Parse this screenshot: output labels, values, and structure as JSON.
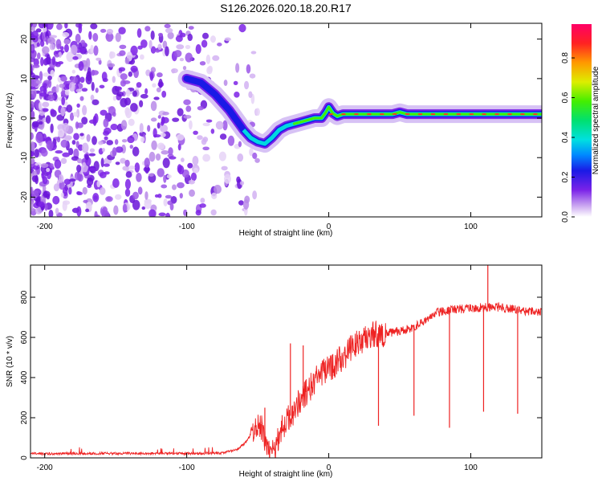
{
  "title": "S126.2026.020.18.20.R17",
  "chart_data": [
    {
      "type": "heatmap",
      "xlabel": "Height of straight line (km)",
      "ylabel": "Frequency (Hz)",
      "xlim": [
        -210,
        150
      ],
      "ylim": [
        -25,
        24
      ],
      "x_ticks": [
        -200,
        -100,
        0,
        100
      ],
      "y_ticks": [
        -20,
        -10,
        0,
        10,
        20
      ],
      "ridge_line": {
        "x": [
          -100,
          -90,
          -80,
          -70,
          -60,
          -55,
          -50,
          -45,
          -40,
          -35,
          -30,
          -25,
          -20,
          -15,
          -10,
          -5,
          -2,
          0,
          3,
          6,
          10,
          20,
          30,
          45,
          50,
          55,
          60,
          80,
          100,
          110,
          120,
          140,
          150
        ],
        "y": [
          10,
          9,
          6,
          2,
          -3,
          -5,
          -6,
          -6.5,
          -5,
          -3,
          -2,
          -1.5,
          -1,
          -0.5,
          0,
          0,
          1.5,
          2.8,
          1.2,
          0.5,
          1,
          1,
          1,
          1,
          1.5,
          1,
          1,
          1,
          1,
          1,
          1,
          1,
          1
        ]
      },
      "colorbar": {
        "label": "Normalized spectral amplitude",
        "ticks": [
          "0.0",
          "0.2",
          "0.4",
          "0.6",
          "0.8"
        ],
        "tick_values": [
          0.0,
          0.2,
          0.4,
          0.6,
          0.8
        ],
        "range": [
          0,
          0.97
        ]
      }
    },
    {
      "type": "line",
      "xlabel": "Height of straight line (km)",
      "ylabel": "SNR (10 * v/v)",
      "xlim": [
        -210,
        150
      ],
      "ylim": [
        0,
        960
      ],
      "x_ticks": [
        -200,
        -100,
        0,
        100
      ],
      "y_ticks": [
        0,
        200,
        400,
        600,
        800
      ],
      "series": [
        {
          "name": "SNR",
          "color": "#ee2222",
          "x": [
            -210,
            -180,
            -150,
            -120,
            -90,
            -75,
            -65,
            -58,
            -52,
            -48,
            -45,
            -42,
            -40,
            -38,
            -35,
            -30,
            -25,
            -20,
            -15,
            -10,
            -5,
            0,
            5,
            10,
            15,
            20,
            25,
            30,
            40,
            50,
            60,
            70,
            75,
            80,
            90,
            100,
            110,
            120,
            130,
            140,
            150
          ],
          "y": [
            20,
            22,
            22,
            22,
            22,
            25,
            40,
            80,
            150,
            160,
            90,
            40,
            20,
            40,
            120,
            180,
            230,
            290,
            330,
            380,
            420,
            440,
            470,
            500,
            540,
            570,
            590,
            610,
            620,
            630,
            650,
            690,
            720,
            730,
            740,
            745,
            750,
            750,
            740,
            730,
            730
          ]
        }
      ],
      "spikes": {
        "x": [
          -45,
          -27,
          -18,
          35,
          60,
          85,
          109,
          112,
          133
        ],
        "y": [
          250,
          570,
          560,
          160,
          210,
          150,
          230,
          960,
          220
        ]
      }
    }
  ]
}
